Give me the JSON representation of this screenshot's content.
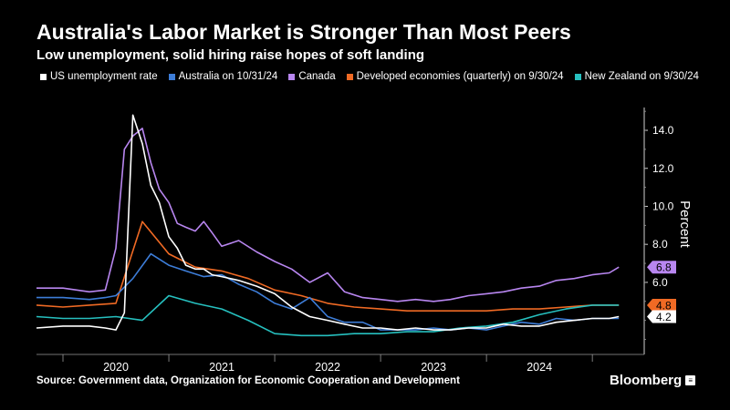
{
  "title": "Australia's Labor Market is Stronger Than Most Peers",
  "subtitle": "Low unemployment, solid hiring raise hopes of soft landing",
  "source": "Source: Government data, Organization for Economic Cooperation and Development",
  "brand": "Bloomberg",
  "brand_icon": "bloomberg-chat-icon",
  "chart_data": {
    "type": "line",
    "title": "Australia's Labor Market is Stronger Than Most Peers",
    "xlabel": "",
    "ylabel": "Percent",
    "ylim": [
      2.4,
      15.2
    ],
    "xlim": [
      2019.25,
      2024.99
    ],
    "yticks": [
      4.2,
      6.0,
      8.0,
      10.0,
      12.0,
      14.0
    ],
    "ytick_labels": [
      "4.2",
      "6.0",
      "8.0",
      "10.0",
      "12.0",
      "14.0"
    ],
    "xtick_labels": [
      "2020",
      "2021",
      "2022",
      "2023",
      "2024"
    ],
    "xtick_positions": [
      2020,
      2021,
      2022,
      2023,
      2024
    ],
    "grid": false,
    "legend_position": "top",
    "series": [
      {
        "name": "US unemployment rate",
        "color": "#ffffff",
        "end_label": "4.2",
        "x": [
          2019.25,
          2019.5,
          2019.75,
          2019.9,
          2020.0,
          2020.08,
          2020.16,
          2020.25,
          2020.33,
          2020.41,
          2020.5,
          2020.58,
          2020.66,
          2020.75,
          2020.83,
          2020.91,
          2021.0,
          2021.16,
          2021.33,
          2021.5,
          2021.66,
          2021.83,
          2022.0,
          2022.16,
          2022.33,
          2022.5,
          2022.66,
          2022.83,
          2023.0,
          2023.16,
          2023.33,
          2023.5,
          2023.66,
          2023.83,
          2024.0,
          2024.16,
          2024.33,
          2024.5,
          2024.66,
          2024.75
        ],
        "y": [
          3.6,
          3.7,
          3.7,
          3.6,
          3.5,
          4.4,
          14.8,
          13.3,
          11.1,
          10.2,
          8.4,
          7.8,
          6.9,
          6.7,
          6.7,
          6.4,
          6.3,
          6.1,
          5.8,
          5.4,
          4.7,
          4.2,
          4.0,
          3.8,
          3.6,
          3.6,
          3.5,
          3.6,
          3.5,
          3.5,
          3.6,
          3.6,
          3.8,
          3.7,
          3.7,
          3.9,
          4.0,
          4.1,
          4.1,
          4.2
        ]
      },
      {
        "name": "Australia on 10/31/24",
        "color": "#3d7dd8",
        "end_label": "",
        "x": [
          2019.25,
          2019.5,
          2019.75,
          2019.9,
          2020.0,
          2020.16,
          2020.33,
          2020.5,
          2020.66,
          2020.83,
          2021.0,
          2021.16,
          2021.33,
          2021.5,
          2021.66,
          2021.83,
          2022.0,
          2022.16,
          2022.33,
          2022.5,
          2022.66,
          2022.83,
          2023.0,
          2023.16,
          2023.33,
          2023.5,
          2023.66,
          2023.83,
          2024.0,
          2024.16,
          2024.33,
          2024.5,
          2024.66,
          2024.75
        ],
        "y": [
          5.2,
          5.2,
          5.1,
          5.2,
          5.3,
          6.2,
          7.5,
          6.9,
          6.6,
          6.3,
          6.4,
          5.9,
          5.5,
          4.9,
          4.6,
          5.2,
          4.2,
          3.9,
          3.9,
          3.5,
          3.5,
          3.5,
          3.6,
          3.5,
          3.6,
          3.5,
          3.7,
          3.9,
          3.8,
          4.1,
          4.0,
          4.1,
          4.1,
          4.1
        ]
      },
      {
        "name": "Canada",
        "color": "#b886f0",
        "end_label": "6.8",
        "x": [
          2019.25,
          2019.5,
          2019.75,
          2019.9,
          2020.0,
          2020.08,
          2020.16,
          2020.25,
          2020.33,
          2020.41,
          2020.5,
          2020.58,
          2020.66,
          2020.75,
          2020.83,
          2020.91,
          2021.0,
          2021.16,
          2021.33,
          2021.5,
          2021.66,
          2021.83,
          2022.0,
          2022.16,
          2022.33,
          2022.5,
          2022.66,
          2022.83,
          2023.0,
          2023.16,
          2023.33,
          2023.5,
          2023.66,
          2023.83,
          2024.0,
          2024.16,
          2024.33,
          2024.5,
          2024.66,
          2024.75
        ],
        "y": [
          5.7,
          5.7,
          5.5,
          5.6,
          7.8,
          13.0,
          13.7,
          14.1,
          12.3,
          10.9,
          10.2,
          9.1,
          8.9,
          8.7,
          9.2,
          8.6,
          7.9,
          8.2,
          7.6,
          7.1,
          6.7,
          6.0,
          6.5,
          5.5,
          5.2,
          5.1,
          5.0,
          5.1,
          5.0,
          5.1,
          5.3,
          5.4,
          5.5,
          5.7,
          5.8,
          6.1,
          6.2,
          6.4,
          6.5,
          6.8
        ]
      },
      {
        "name": "Developed economies (quarterly) on 9/30/24",
        "color": "#f06a24",
        "end_label": "4.8",
        "x": [
          2019.25,
          2019.5,
          2019.75,
          2020.0,
          2020.25,
          2020.5,
          2020.75,
          2021.0,
          2021.25,
          2021.5,
          2021.75,
          2022.0,
          2022.25,
          2022.5,
          2022.75,
          2023.0,
          2023.25,
          2023.5,
          2023.75,
          2024.0,
          2024.25,
          2024.5,
          2024.75
        ],
        "y": [
          4.8,
          4.7,
          4.8,
          4.9,
          9.2,
          7.5,
          6.8,
          6.6,
          6.2,
          5.6,
          5.3,
          4.9,
          4.7,
          4.6,
          4.5,
          4.5,
          4.5,
          4.5,
          4.6,
          4.6,
          4.7,
          4.8,
          4.8
        ]
      },
      {
        "name": "New Zealand on 9/30/24",
        "color": "#26c0bf",
        "end_label": "",
        "x": [
          2019.25,
          2019.5,
          2019.75,
          2020.0,
          2020.25,
          2020.5,
          2020.75,
          2021.0,
          2021.25,
          2021.5,
          2021.75,
          2022.0,
          2022.25,
          2022.5,
          2022.75,
          2023.0,
          2023.25,
          2023.5,
          2023.75,
          2024.0,
          2024.25,
          2024.5,
          2024.75
        ],
        "y": [
          4.2,
          4.1,
          4.1,
          4.2,
          4.0,
          5.3,
          4.9,
          4.6,
          4.0,
          3.3,
          3.2,
          3.2,
          3.3,
          3.3,
          3.4,
          3.4,
          3.6,
          3.7,
          3.9,
          4.3,
          4.6,
          4.8,
          4.8
        ]
      }
    ]
  }
}
